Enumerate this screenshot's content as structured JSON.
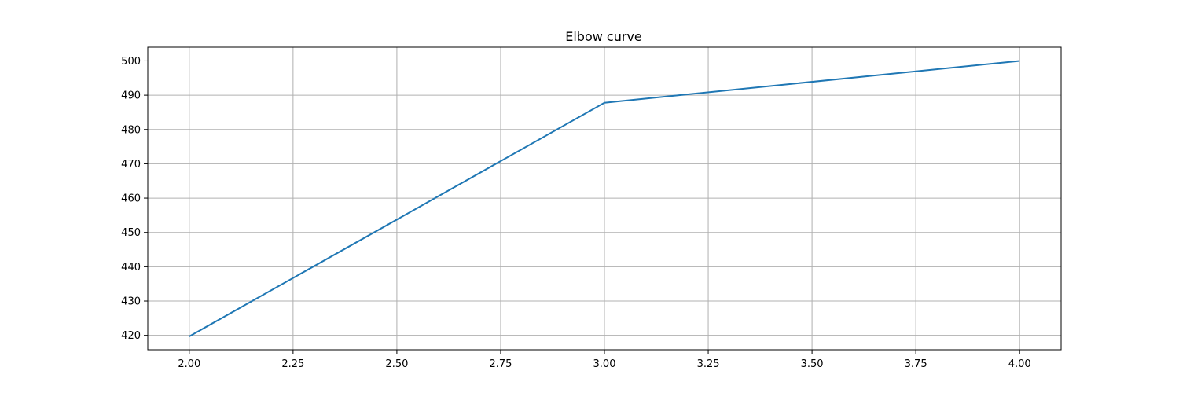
{
  "chart_data": {
    "type": "line",
    "title": "Elbow curve",
    "xlabel": "",
    "ylabel": "",
    "xlim": [
      1.9,
      4.1
    ],
    "ylim": [
      415.8,
      504.0
    ],
    "xticks": [
      2.0,
      2.25,
      2.5,
      2.75,
      3.0,
      3.25,
      3.5,
      3.75,
      4.0
    ],
    "xtick_labels": [
      "2.00",
      "2.25",
      "2.50",
      "2.75",
      "3.00",
      "3.25",
      "3.50",
      "3.75",
      "4.00"
    ],
    "yticks": [
      420,
      430,
      440,
      450,
      460,
      470,
      480,
      490,
      500
    ],
    "ytick_labels": [
      "420",
      "430",
      "440",
      "450",
      "460",
      "470",
      "480",
      "490",
      "500"
    ],
    "grid": true,
    "series": [
      {
        "x": [
          2,
          3,
          4
        ],
        "values": [
          419.7,
          487.8,
          500.0
        ],
        "color": "#1f77b4"
      }
    ]
  }
}
